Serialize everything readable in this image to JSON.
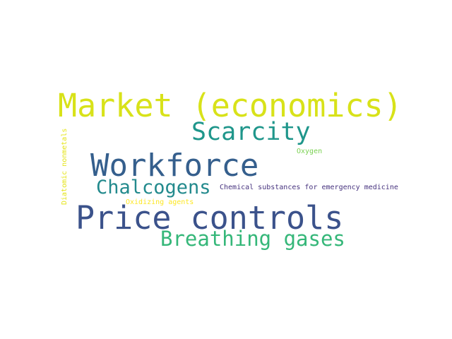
{
  "words": {
    "market": {
      "text": "Market (economics)",
      "color": "#d8e219"
    },
    "scarcity": {
      "text": "Scarcity",
      "color": "#1f968b"
    },
    "workforce": {
      "text": "Workforce",
      "color": "#355f8d"
    },
    "chalcogens": {
      "text": "Chalcogens",
      "color": "#238a8d"
    },
    "chemical": {
      "text": "Chemical substances for emergency medicine",
      "color": "#46327e"
    },
    "oxygen": {
      "text": "Oxygen",
      "color": "#7ad151"
    },
    "oxidizing": {
      "text": "Oxidizing agents",
      "color": "#fde725"
    },
    "price": {
      "text": "Price controls",
      "color": "#3b528b"
    },
    "breathing": {
      "text": "Breathing gases",
      "color": "#35b779"
    },
    "diatomic": {
      "text": "Diatomic nonmetals",
      "color": "#e5e419"
    }
  }
}
